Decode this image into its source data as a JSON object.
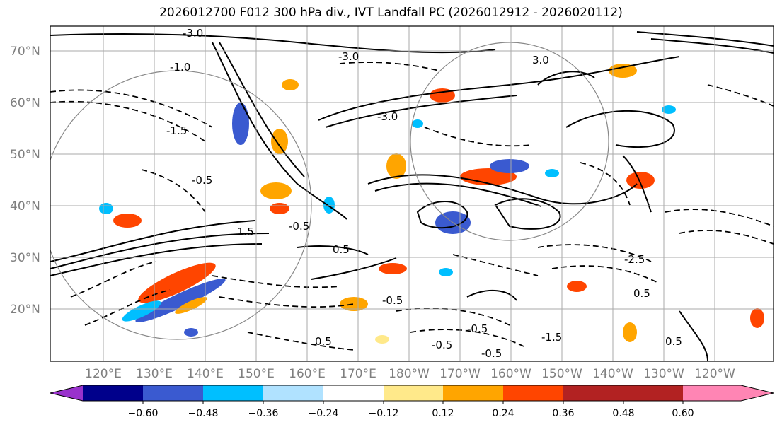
{
  "title": "2026012700 F012 300 hPa div., IVT Landfall PC (2026012912 - 2026020112)",
  "map": {
    "lat_labels": [
      "70°N",
      "60°N",
      "50°N",
      "40°N",
      "30°N",
      "20°N"
    ],
    "lon_labels": [
      "120°E",
      "130°E",
      "140°E",
      "150°E",
      "160°E",
      "170°E",
      "180°W",
      "170°W",
      "160°W",
      "150°W",
      "140°W",
      "130°W",
      "120°W"
    ],
    "grid_color": "#aaaaaa",
    "label_color": "#7f7f7f",
    "contour_labels": [
      "-3.0",
      "-3.0",
      "3.0",
      "-3.0",
      "-1.0",
      "-0.5",
      "-1.5",
      "-0.5",
      "0.5",
      "-0.5",
      "1.5",
      "-0.5",
      "0.5",
      "-0.5",
      "-1.5",
      "-2.5",
      "-0.5",
      "0.5",
      "0.5"
    ]
  },
  "colorbar": {
    "ticks": [
      "−0.60",
      "−0.48",
      "−0.36",
      "−0.24",
      "−0.12",
      "0.12",
      "0.24",
      "0.36",
      "0.48",
      "0.60"
    ],
    "colors": [
      "#9932cc",
      "#00008b",
      "#3a5ad0",
      "#00bfff",
      "#b0e2ff",
      "#ffffff",
      "#ffe98a",
      "#ffa500",
      "#ff4500",
      "#b22222",
      "#ff85b4"
    ]
  }
}
